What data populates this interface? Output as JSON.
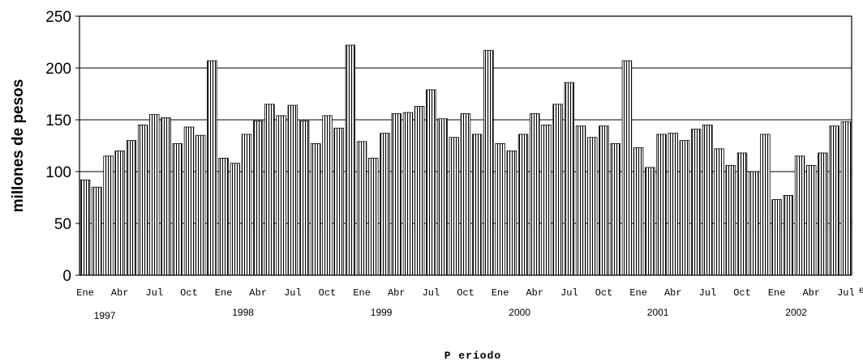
{
  "chart_data": {
    "type": "bar",
    "title": "",
    "ylabel": "millones de pesos",
    "xlabel": "P eríodo",
    "ylim": [
      0,
      250
    ],
    "yticks": [
      0,
      50,
      100,
      150,
      200,
      250
    ],
    "grid": true,
    "bar_color": "#000000",
    "series": [
      {
        "values": [
          92,
          85,
          115,
          120,
          130,
          145,
          155,
          152,
          127,
          143,
          135,
          207,
          113,
          108,
          136,
          149,
          165,
          154,
          164,
          149,
          127,
          154,
          142,
          222,
          129,
          113,
          137,
          156,
          157,
          163,
          179,
          151,
          133,
          156,
          136,
          217,
          127,
          120,
          136,
          156,
          145,
          165,
          186,
          144,
          133,
          144,
          127,
          207,
          123,
          104,
          136,
          137,
          130,
          141,
          145,
          122,
          106,
          118,
          100,
          136,
          73,
          77,
          115,
          106,
          118,
          144,
          148
        ]
      }
    ],
    "month_ticks": [
      "Ene",
      "Abr",
      "Jul",
      "Oct",
      "Ene",
      "Abr",
      "Jul",
      "Oct",
      "Ene",
      "Abr",
      "Jul",
      "Oct",
      "Ene",
      "Abr",
      "Jul",
      "Oct",
      "Ene",
      "Abr",
      "Jul",
      "Oct",
      "Ene",
      "Abr",
      "Jul"
    ],
    "year_labels": [
      "1997",
      "1998",
      "1999",
      "2000",
      "2001",
      "2002"
    ],
    "year_start_month_index": [
      0,
      12,
      24,
      36,
      48,
      60
    ],
    "trailing_mark": "e"
  }
}
